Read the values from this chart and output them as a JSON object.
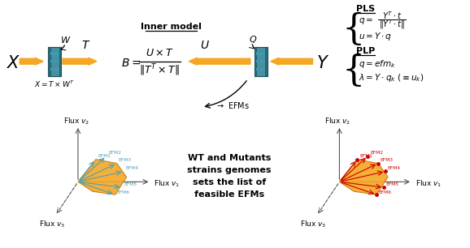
{
  "bg_color": "#ffffff",
  "orange": "#f5a623",
  "teal": "#4a8fa0",
  "teal_dark": "#2e6b7a",
  "teal_border": "#1a5060",
  "black": "#000000",
  "red": "#cc0000",
  "cyan_arrow": "#50a0b0",
  "axis_color": "#555555",
  "efm_labels": [
    "EFM1",
    "EFM2",
    "EFM3",
    "EFM4",
    "EFM5",
    "EFM6"
  ]
}
